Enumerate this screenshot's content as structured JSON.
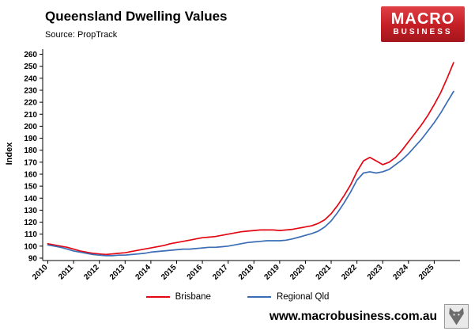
{
  "header": {
    "title": "Queensland Dwelling Values",
    "source": "Source: PropTrack",
    "logo": {
      "line1": "MACRO",
      "line2": "BUSINESS",
      "bg_color": "#c41e25"
    }
  },
  "chart_data": {
    "type": "line",
    "title": "Queensland Dwelling Values",
    "xlabel": "",
    "ylabel": "Index",
    "ylim": [
      90,
      260
    ],
    "ytick_step": 10,
    "xticks": [
      2010,
      2011,
      2012,
      2013,
      2014,
      2015,
      2016,
      2017,
      2018,
      2019,
      2020,
      2021,
      2022,
      2023,
      2024,
      2025
    ],
    "grid": false,
    "legend_position": "bottom",
    "x": [
      2010,
      2010.25,
      2010.5,
      2010.75,
      2011,
      2011.25,
      2011.5,
      2011.75,
      2012,
      2012.25,
      2012.5,
      2012.75,
      2013,
      2013.25,
      2013.5,
      2013.75,
      2014,
      2014.25,
      2014.5,
      2014.75,
      2015,
      2015.25,
      2015.5,
      2015.75,
      2016,
      2016.25,
      2016.5,
      2016.75,
      2017,
      2017.25,
      2017.5,
      2017.75,
      2018,
      2018.25,
      2018.5,
      2018.75,
      2019,
      2019.25,
      2019.5,
      2019.75,
      2020,
      2020.25,
      2020.5,
      2020.75,
      2021,
      2021.25,
      2021.5,
      2021.75,
      2022,
      2022.25,
      2022.5,
      2022.75,
      2023,
      2023.25,
      2023.5,
      2023.75,
      2024,
      2024.25,
      2024.5,
      2024.75,
      2025,
      2025.25,
      2025.5,
      2025.75
    ],
    "series": [
      {
        "name": "Brisbane",
        "color": "#e30613",
        "y": [
          102,
          101,
          100,
          99,
          97.5,
          96,
          95,
          94,
          93.5,
          93,
          93.5,
          94,
          94.5,
          95.5,
          96.5,
          97.5,
          98.5,
          99.5,
          100.5,
          102,
          103,
          104,
          105,
          106,
          107,
          107.5,
          108,
          109,
          110,
          111,
          112,
          112.5,
          113,
          113.5,
          113.5,
          113.5,
          113,
          113.5,
          114,
          115,
          116,
          117,
          119,
          122,
          127,
          134,
          142,
          151,
          162,
          171,
          174,
          171,
          168,
          170,
          174,
          180,
          187,
          194,
          201,
          209,
          218,
          228,
          240,
          253
        ]
      },
      {
        "name": "Regional Qld",
        "color": "#3a6db5",
        "y": [
          101,
          100,
          99,
          97.5,
          96,
          95,
          94,
          93,
          92.5,
          92,
          92,
          92.5,
          92.5,
          93,
          93.5,
          94,
          95,
          95.5,
          96,
          96.5,
          97,
          97.5,
          97.5,
          98,
          98.5,
          99,
          99,
          99.5,
          100,
          101,
          102,
          103,
          103.5,
          104,
          104.5,
          104.5,
          104.5,
          105,
          106,
          107.5,
          109,
          110.5,
          112.5,
          116,
          121,
          128,
          136,
          145,
          155,
          161,
          162,
          161,
          162,
          164,
          168,
          172,
          177,
          183,
          189,
          196,
          203,
          211,
          220,
          229
        ]
      }
    ]
  },
  "footer": {
    "website": "www.macrobusiness.com.au",
    "wolf_logo": "wolf-emblem"
  }
}
